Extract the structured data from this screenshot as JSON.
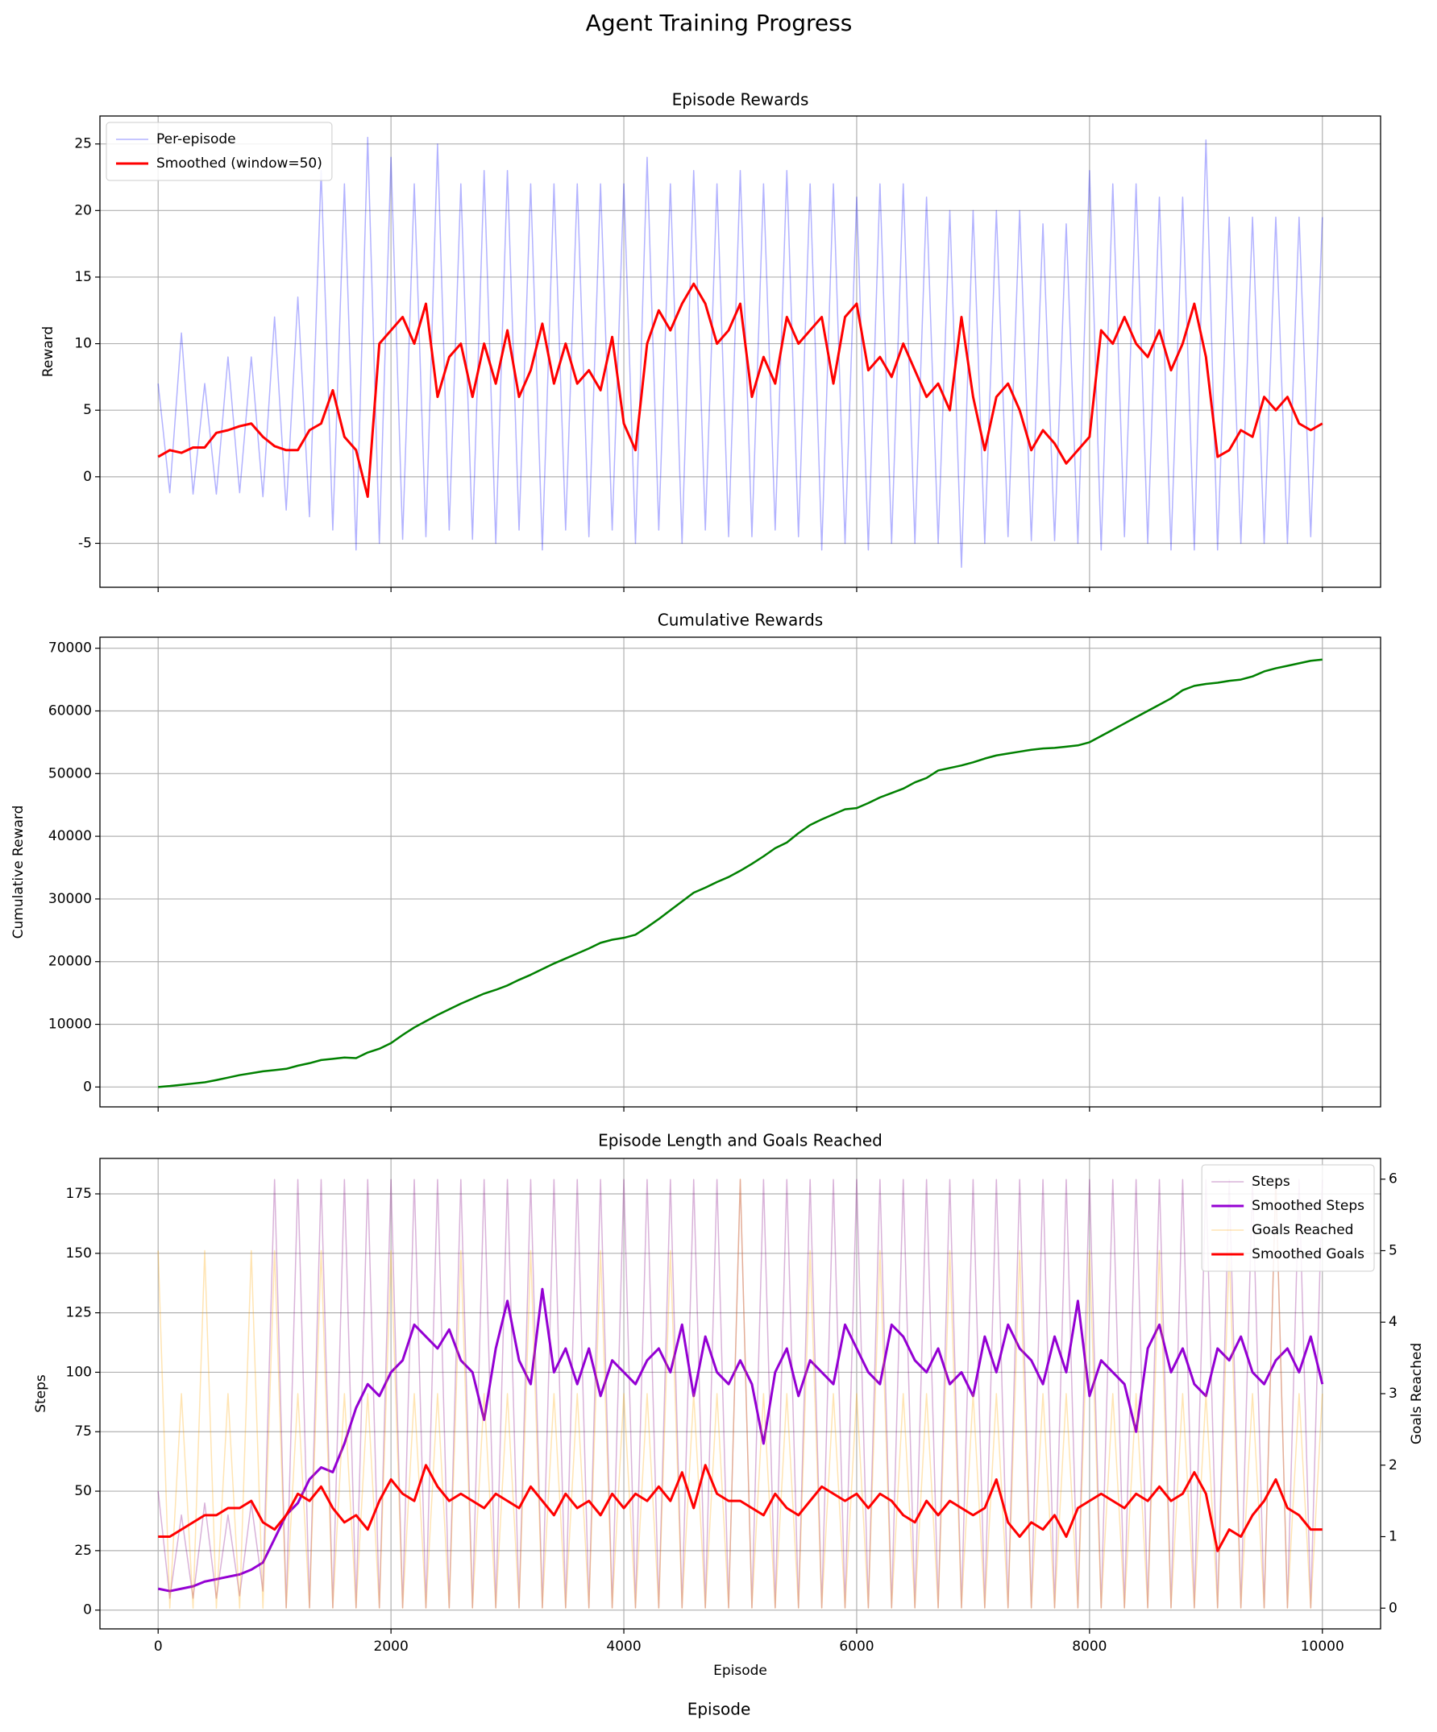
{
  "figure": {
    "title": "Agent Training Progress",
    "xlabel": "Episode"
  },
  "chart_data": [
    {
      "type": "line",
      "title": "Episode Rewards",
      "ylabel": "Reward",
      "grid": true,
      "legend": "upper left",
      "show_xtick_labels": false,
      "xlim": [
        -500,
        10500
      ],
      "xticks": [
        0,
        2000,
        4000,
        6000,
        8000,
        10000
      ],
      "ylim": [
        -8.3,
        27.1
      ],
      "yticks": [
        -5,
        0,
        5,
        10,
        15,
        20,
        25
      ],
      "x": [
        0,
        100,
        200,
        300,
        400,
        500,
        600,
        700,
        800,
        900,
        1000,
        1100,
        1200,
        1300,
        1400,
        1500,
        1600,
        1700,
        1800,
        1900,
        2000,
        2100,
        2200,
        2300,
        2400,
        2500,
        2600,
        2700,
        2800,
        2900,
        3000,
        3100,
        3200,
        3300,
        3400,
        3500,
        3600,
        3700,
        3800,
        3900,
        4000,
        4100,
        4200,
        4300,
        4400,
        4500,
        4600,
        4700,
        4800,
        4900,
        5000,
        5100,
        5200,
        5300,
        5400,
        5500,
        5600,
        5700,
        5800,
        5900,
        6000,
        6100,
        6200,
        6300,
        6400,
        6500,
        6600,
        6700,
        6800,
        6900,
        7000,
        7100,
        7200,
        7300,
        7400,
        7500,
        7600,
        7700,
        7800,
        7900,
        8000,
        8100,
        8200,
        8300,
        8400,
        8500,
        8600,
        8700,
        8800,
        8900,
        9000,
        9100,
        9200,
        9300,
        9400,
        9500,
        9600,
        9700,
        9800,
        9900,
        10000
      ],
      "series": [
        {
          "name": "Per-episode",
          "color": "#0000ff",
          "alpha": 0.3,
          "width": 1.5,
          "values": [
            7,
            -1.2,
            10.8,
            -1.3,
            7,
            -1.3,
            9,
            -1.2,
            9,
            -1.5,
            12,
            -2.5,
            13.5,
            -3,
            23,
            -4,
            22,
            -5.5,
            25.5,
            -5,
            24,
            -4.7,
            22,
            -4.5,
            25,
            -4,
            22,
            -4.7,
            23,
            -5,
            23,
            -4,
            22,
            -5.5,
            22,
            -4,
            22,
            -4.5,
            22,
            -4,
            22,
            -5,
            24,
            -4,
            22,
            -5,
            23,
            -4,
            22,
            -4.5,
            23,
            -4.5,
            22,
            -4,
            23,
            -4.5,
            22,
            -5.5,
            22,
            -5,
            21,
            -5.5,
            22,
            -5,
            22,
            -5,
            21,
            -5,
            20,
            -6.8,
            20,
            -5,
            20,
            -4.5,
            20,
            -4.8,
            19,
            -4.8,
            19,
            -5,
            23,
            -5.5,
            22,
            -4.5,
            22,
            -5,
            21,
            -5.5,
            21,
            -5.5,
            25.3,
            -5.5,
            19.5,
            -5,
            19.5,
            -5,
            19.5,
            -5,
            19.5,
            -4.5,
            19.5
          ]
        },
        {
          "name": "Smoothed (window=50)",
          "color": "#ff0000",
          "alpha": 1,
          "width": 3,
          "values": [
            1.5,
            2,
            1.8,
            2.2,
            2.2,
            3.3,
            3.5,
            3.8,
            4,
            3,
            2.3,
            2,
            2,
            3.5,
            4,
            6.5,
            3,
            2,
            -1.5,
            10,
            11,
            12,
            10,
            13,
            6,
            9,
            10,
            6,
            10,
            7,
            11,
            6,
            8,
            11.5,
            7,
            10,
            7,
            8,
            6.5,
            10.5,
            4,
            2,
            10,
            12.5,
            11,
            13,
            14.5,
            13,
            10,
            11,
            13,
            6,
            9,
            7,
            12,
            10,
            11,
            12,
            7,
            12,
            13,
            8,
            9,
            7.5,
            10,
            8,
            6,
            7,
            5,
            12,
            6,
            2,
            6,
            7,
            5,
            2,
            3.5,
            2.5,
            1,
            2,
            3,
            11,
            10,
            12,
            10,
            9,
            11,
            8,
            10,
            13,
            9,
            1.5,
            2,
            3.5,
            3,
            6,
            5,
            6,
            4,
            3.5,
            4
          ]
        }
      ]
    },
    {
      "type": "line",
      "title": "Cumulative Rewards",
      "ylabel": "Cumulative Reward",
      "grid": true,
      "show_xtick_labels": false,
      "xlim": [
        -500,
        10500
      ],
      "xticks": [
        0,
        2000,
        4000,
        6000,
        8000,
        10000
      ],
      "ylim": [
        -3170,
        71760
      ],
      "yticks": [
        0,
        10000,
        20000,
        30000,
        40000,
        50000,
        60000,
        70000
      ],
      "x": [
        0,
        100,
        200,
        300,
        400,
        500,
        600,
        700,
        800,
        900,
        1000,
        1100,
        1200,
        1300,
        1400,
        1500,
        1600,
        1700,
        1800,
        1900,
        2000,
        2100,
        2200,
        2300,
        2400,
        2500,
        2600,
        2700,
        2800,
        2900,
        3000,
        3100,
        3200,
        3300,
        3400,
        3500,
        3600,
        3700,
        3800,
        3900,
        4000,
        4100,
        4200,
        4300,
        4400,
        4500,
        4600,
        4700,
        4800,
        4900,
        5000,
        5100,
        5200,
        5300,
        5400,
        5500,
        5600,
        5700,
        5800,
        5900,
        6000,
        6100,
        6200,
        6300,
        6400,
        6500,
        6600,
        6700,
        6800,
        6900,
        7000,
        7100,
        7200,
        7300,
        7400,
        7500,
        7600,
        7700,
        7800,
        7900,
        8000,
        8100,
        8200,
        8300,
        8400,
        8500,
        8600,
        8700,
        8800,
        8900,
        9000,
        9100,
        9200,
        9300,
        9400,
        9500,
        9600,
        9700,
        9800,
        9900,
        10000
      ],
      "series": [
        {
          "color": "#008000",
          "alpha": 1,
          "width": 2.5,
          "values": [
            0,
            150,
            350,
            550,
            750,
            1100,
            1500,
            1900,
            2200,
            2500,
            2700,
            2900,
            3400,
            3800,
            4300,
            4500,
            4700,
            4600,
            5500,
            6100,
            7000,
            8300,
            9500,
            10500,
            11500,
            12400,
            13300,
            14100,
            14900,
            15500,
            16200,
            17100,
            17900,
            18800,
            19700,
            20500,
            21300,
            22100,
            23000,
            23500,
            23800,
            24300,
            25500,
            26800,
            28200,
            29600,
            31000,
            31800,
            32700,
            33500,
            34500,
            35600,
            36800,
            38100,
            39000,
            40500,
            41800,
            42700,
            43500,
            44300,
            44500,
            45300,
            46200,
            46900,
            47600,
            48600,
            49300,
            50500,
            50900,
            51300,
            51800,
            52400,
            52900,
            53200,
            53500,
            53800,
            54000,
            54100,
            54300,
            54500,
            55000,
            56000,
            57000,
            58000,
            59000,
            60000,
            61000,
            62000,
            63300,
            64000,
            64300,
            64500,
            64800,
            65000,
            65500,
            66300,
            66800,
            67200,
            67600,
            68000,
            68200
          ]
        }
      ]
    },
    {
      "type": "line",
      "title": "Episode Length and Goals Reached",
      "xlabel": "Episode",
      "ylabel": "Steps",
      "y2label": "Goals Reached",
      "grid": true,
      "legend": "upper right",
      "show_xtick_labels": true,
      "xlim": [
        -500,
        10500
      ],
      "xticks": [
        0,
        2000,
        4000,
        6000,
        8000,
        10000
      ],
      "ylim": [
        -7.9,
        189.9
      ],
      "yticks": [
        0,
        25,
        50,
        75,
        100,
        125,
        150,
        175
      ],
      "y2lim": [
        -0.29,
        6.29
      ],
      "y2ticks": [
        0,
        1,
        2,
        3,
        4,
        5,
        6
      ],
      "x": [
        0,
        100,
        200,
        300,
        400,
        500,
        600,
        700,
        800,
        900,
        1000,
        1100,
        1200,
        1300,
        1400,
        1500,
        1600,
        1700,
        1800,
        1900,
        2000,
        2100,
        2200,
        2300,
        2400,
        2500,
        2600,
        2700,
        2800,
        2900,
        3000,
        3100,
        3200,
        3300,
        3400,
        3500,
        3600,
        3700,
        3800,
        3900,
        4000,
        4100,
        4200,
        4300,
        4400,
        4500,
        4600,
        4700,
        4800,
        4900,
        5000,
        5100,
        5200,
        5300,
        5400,
        5500,
        5600,
        5700,
        5800,
        5900,
        6000,
        6100,
        6200,
        6300,
        6400,
        6500,
        6600,
        6700,
        6800,
        6900,
        7000,
        7100,
        7200,
        7300,
        7400,
        7500,
        7600,
        7700,
        7800,
        7900,
        8000,
        8100,
        8200,
        8300,
        8400,
        8500,
        8600,
        8700,
        8800,
        8900,
        9000,
        9100,
        9200,
        9300,
        9400,
        9500,
        9600,
        9700,
        9800,
        9900,
        10000
      ],
      "series": [
        {
          "name": "Steps",
          "color": "#800080",
          "alpha": 0.3,
          "width": 1.5,
          "values": [
            50,
            5,
            40,
            5,
            45,
            5,
            40,
            6,
            45,
            8,
            181,
            1,
            181,
            1,
            181,
            1,
            181,
            1,
            181,
            1,
            181,
            1,
            181,
            1,
            181,
            1,
            181,
            1,
            181,
            1,
            181,
            1,
            181,
            1,
            181,
            1,
            181,
            1,
            181,
            1,
            181,
            1,
            181,
            1,
            181,
            1,
            181,
            1,
            181,
            1,
            181,
            1,
            181,
            1,
            181,
            1,
            181,
            1,
            181,
            1,
            181,
            1,
            181,
            1,
            181,
            1,
            181,
            1,
            181,
            1,
            181,
            1,
            181,
            1,
            181,
            1,
            181,
            1,
            181,
            1,
            181,
            1,
            181,
            1,
            181,
            1,
            181,
            1,
            181,
            1,
            181,
            1,
            181,
            1,
            181,
            1,
            181,
            1,
            181,
            1,
            181
          ]
        },
        {
          "name": "Smoothed Steps",
          "color": "#9400d3",
          "alpha": 1,
          "width": 3,
          "values": [
            9,
            8,
            9,
            10,
            12,
            13,
            14,
            15,
            17,
            20,
            30,
            40,
            45,
            55,
            60,
            58,
            70,
            85,
            95,
            90,
            100,
            105,
            120,
            115,
            110,
            118,
            105,
            100,
            80,
            110,
            130,
            105,
            95,
            135,
            100,
            110,
            95,
            110,
            90,
            105,
            100,
            95,
            105,
            110,
            100,
            120,
            90,
            115,
            100,
            95,
            105,
            95,
            70,
            100,
            110,
            90,
            105,
            100,
            95,
            120,
            110,
            100,
            95,
            120,
            115,
            105,
            100,
            110,
            95,
            100,
            90,
            115,
            100,
            120,
            110,
            105,
            95,
            115,
            100,
            130,
            90,
            105,
            100,
            95,
            75,
            110,
            120,
            100,
            110,
            95,
            90,
            110,
            105,
            115,
            100,
            95,
            105,
            110,
            100,
            115,
            95
          ]
        },
        {
          "name": "Goals Reached",
          "color": "#ffa500",
          "alpha": 0.3,
          "width": 1.5,
          "axis": "y2",
          "values": [
            5,
            0,
            3,
            0,
            5,
            0,
            3,
            0,
            5,
            0,
            5,
            0,
            3,
            0,
            5,
            0,
            3,
            0,
            3,
            0,
            5,
            0,
            3,
            0,
            3,
            0,
            5,
            0,
            3,
            0,
            3,
            0,
            5,
            0,
            3,
            0,
            3,
            0,
            5,
            0,
            3,
            0,
            3,
            0,
            5,
            0,
            3,
            0,
            3,
            0,
            6,
            0,
            3,
            0,
            3,
            0,
            5,
            0,
            3,
            0,
            3,
            0,
            5,
            0,
            3,
            0,
            3,
            0,
            5,
            0,
            3,
            0,
            3,
            0,
            5,
            0,
            3,
            0,
            3,
            0,
            5,
            0,
            3,
            0,
            3,
            0,
            5,
            0,
            3,
            0,
            3,
            0,
            5,
            0,
            3,
            0,
            6,
            0,
            3,
            0,
            3
          ]
        },
        {
          "name": "Smoothed Goals",
          "color": "#ff0000",
          "alpha": 1,
          "width": 3,
          "axis": "y2",
          "values": [
            1.0,
            1.0,
            1.1,
            1.2,
            1.3,
            1.3,
            1.4,
            1.4,
            1.5,
            1.2,
            1.1,
            1.3,
            1.6,
            1.5,
            1.7,
            1.4,
            1.2,
            1.3,
            1.1,
            1.5,
            1.8,
            1.6,
            1.5,
            2.0,
            1.7,
            1.5,
            1.6,
            1.5,
            1.4,
            1.6,
            1.5,
            1.4,
            1.7,
            1.5,
            1.3,
            1.6,
            1.4,
            1.5,
            1.3,
            1.6,
            1.4,
            1.6,
            1.5,
            1.7,
            1.5,
            1.9,
            1.4,
            2.0,
            1.6,
            1.5,
            1.5,
            1.4,
            1.3,
            1.6,
            1.4,
            1.3,
            1.5,
            1.7,
            1.6,
            1.5,
            1.6,
            1.4,
            1.6,
            1.5,
            1.3,
            1.2,
            1.5,
            1.3,
            1.5,
            1.4,
            1.3,
            1.4,
            1.8,
            1.2,
            1.0,
            1.2,
            1.1,
            1.3,
            1.0,
            1.4,
            1.5,
            1.6,
            1.5,
            1.4,
            1.6,
            1.5,
            1.7,
            1.5,
            1.6,
            1.9,
            1.6,
            0.8,
            1.1,
            1.0,
            1.3,
            1.5,
            1.8,
            1.4,
            1.3,
            1.1,
            1.1
          ]
        }
      ]
    }
  ]
}
